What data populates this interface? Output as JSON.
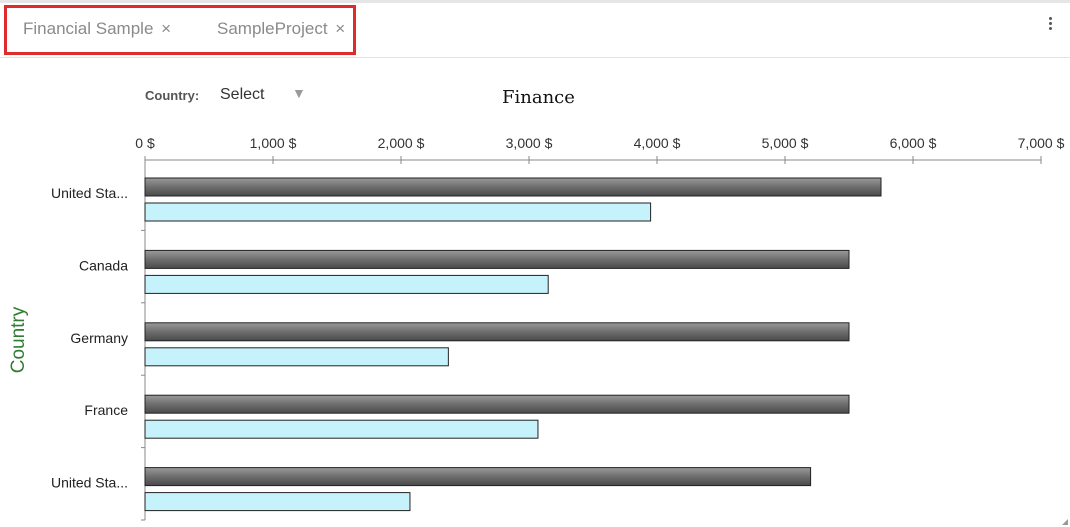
{
  "tabs": [
    {
      "label": "Financial Sample",
      "close": "×"
    },
    {
      "label": "SampleProject",
      "close": "×"
    }
  ],
  "menu_icon": "kebab-menu-icon",
  "filter": {
    "label": "Country:",
    "value": "Select",
    "arrow": "▼"
  },
  "chart_data": {
    "type": "bar",
    "orientation": "horizontal",
    "title": "Finance",
    "ylabel": "Country",
    "xlabel": "",
    "categories": [
      "United Sta...",
      "Canada",
      "Germany",
      "France",
      "United Sta..."
    ],
    "xlim": [
      0,
      7000
    ],
    "x_ticks": [
      "0 $",
      "1,000 $",
      "2,000 $",
      "3,000 $",
      "4,000 $",
      "5,000 $",
      "6,000 $",
      "7,000 $"
    ],
    "series": [
      {
        "color": "#707070",
        "values": [
          5750,
          5500,
          5500,
          5500,
          5200
        ]
      },
      {
        "color": "#c6f3fb",
        "values": [
          3950,
          3150,
          2370,
          3070,
          2070
        ]
      }
    ],
    "ylabel_color": "#2e7d32",
    "grid": false,
    "legend": "none"
  }
}
